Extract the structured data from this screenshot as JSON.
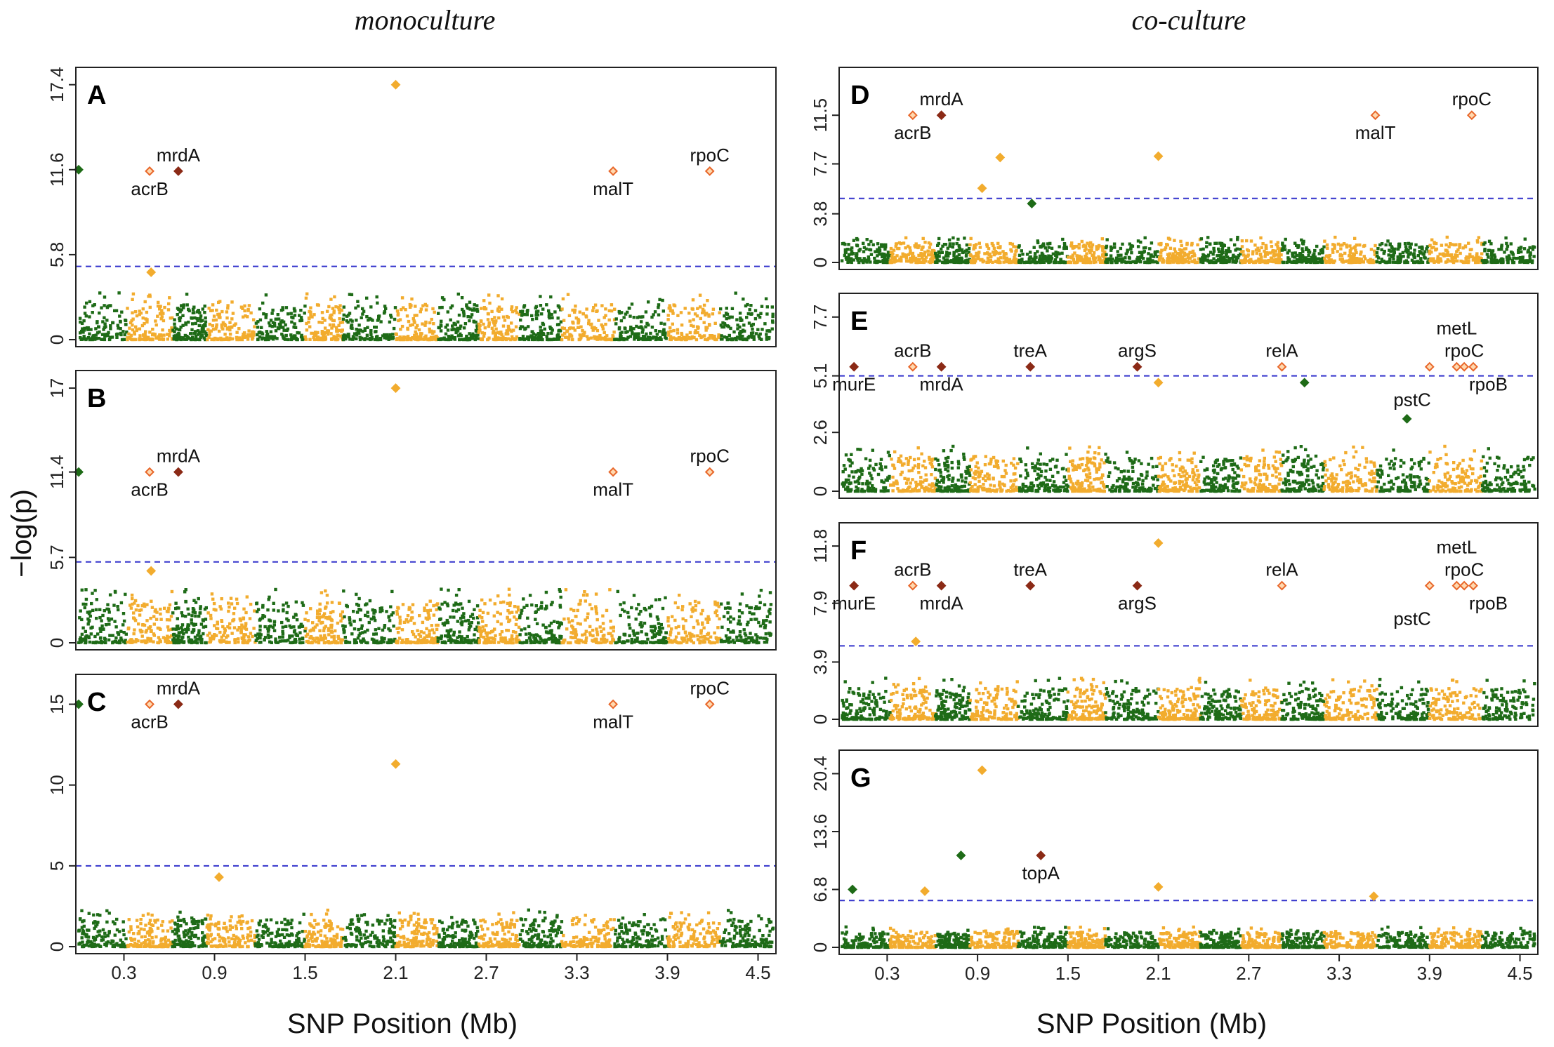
{
  "figure": {
    "left_title": "monoculture",
    "right_title": "co-culture",
    "y_axis_label": "−log(p)",
    "x_axis_label_left": "SNP Position (Mb)",
    "x_axis_label_right": "SNP Position (Mb)"
  },
  "colors": {
    "green": "#1e6b17",
    "orange": "#f2ac2e",
    "sig_orange": "#e8672a",
    "sig_dark": "#8b2a16",
    "threshold": "#3333cc"
  },
  "chart_data": [
    {
      "id": "A",
      "type": "scatter",
      "column": "monoculture",
      "x_ticks": [
        "0.3",
        "0.9",
        "1.5",
        "2.1",
        "2.7",
        "3.3",
        "3.9",
        "4.5"
      ],
      "y_ticks": [
        0,
        5.8,
        11.6,
        17.4
      ],
      "ylim": [
        0,
        18.2
      ],
      "xlim": [
        0,
        4.6
      ],
      "threshold": 5.0,
      "background_max": 3.2,
      "hits": [
        {
          "gene": "acrB",
          "x": 0.47,
          "y": 11.5,
          "color": "orange",
          "label_pos": "below"
        },
        {
          "gene": "mrdA",
          "x": 0.66,
          "y": 11.5,
          "color": "dark",
          "label_pos": "above"
        },
        {
          "gene": "malT",
          "x": 3.54,
          "y": 11.5,
          "color": "orange",
          "label_pos": "below"
        },
        {
          "gene": "rpoC",
          "x": 4.18,
          "y": 11.5,
          "color": "orange",
          "label_pos": "above"
        },
        {
          "gene": "",
          "x": 2.1,
          "y": 17.4,
          "color": "yellow",
          "label_pos": "none"
        },
        {
          "gene": "",
          "x": 0.48,
          "y": 4.6,
          "color": "yellow",
          "label_pos": "none"
        },
        {
          "gene": "",
          "x": 0.0,
          "y": 11.6,
          "color": "green",
          "label_pos": "none"
        }
      ]
    },
    {
      "id": "B",
      "type": "scatter",
      "column": "monoculture",
      "x_ticks": [
        "0.3",
        "0.9",
        "1.5",
        "2.1",
        "2.7",
        "3.3",
        "3.9",
        "4.5"
      ],
      "y_ticks": [
        0,
        5.7,
        11.4,
        17
      ],
      "ylim": [
        0,
        17.8
      ],
      "xlim": [
        0,
        4.6
      ],
      "threshold": 5.4,
      "background_max": 3.6,
      "hits": [
        {
          "gene": "acrB",
          "x": 0.47,
          "y": 11.4,
          "color": "orange",
          "label_pos": "below"
        },
        {
          "gene": "mrdA",
          "x": 0.66,
          "y": 11.4,
          "color": "dark",
          "label_pos": "above"
        },
        {
          "gene": "malT",
          "x": 3.54,
          "y": 11.4,
          "color": "orange",
          "label_pos": "below"
        },
        {
          "gene": "rpoC",
          "x": 4.18,
          "y": 11.4,
          "color": "orange",
          "label_pos": "above"
        },
        {
          "gene": "",
          "x": 2.1,
          "y": 17.0,
          "color": "yellow",
          "label_pos": "none"
        },
        {
          "gene": "",
          "x": 0.48,
          "y": 4.8,
          "color": "yellow",
          "label_pos": "none"
        },
        {
          "gene": "",
          "x": 0.0,
          "y": 11.4,
          "color": "green",
          "label_pos": "none"
        }
      ]
    },
    {
      "id": "C",
      "type": "scatter",
      "column": "monoculture",
      "x_ticks": [
        "0.3",
        "0.9",
        "1.5",
        "2.1",
        "2.7",
        "3.3",
        "3.9",
        "4.5"
      ],
      "y_ticks": [
        0,
        5,
        10,
        15
      ],
      "ylim": [
        0,
        16.5
      ],
      "xlim": [
        0,
        4.6
      ],
      "threshold": 5.0,
      "background_max": 2.3,
      "hits": [
        {
          "gene": "acrB",
          "x": 0.47,
          "y": 15.0,
          "color": "orange",
          "label_pos": "below"
        },
        {
          "gene": "mrdA",
          "x": 0.66,
          "y": 15.0,
          "color": "dark",
          "label_pos": "above"
        },
        {
          "gene": "malT",
          "x": 3.54,
          "y": 15.0,
          "color": "orange",
          "label_pos": "below"
        },
        {
          "gene": "rpoC",
          "x": 4.18,
          "y": 15.0,
          "color": "orange",
          "label_pos": "above"
        },
        {
          "gene": "",
          "x": 2.1,
          "y": 11.3,
          "color": "yellow",
          "label_pos": "none"
        },
        {
          "gene": "",
          "x": 0.93,
          "y": 4.3,
          "color": "yellow",
          "label_pos": "none"
        },
        {
          "gene": "",
          "x": 0.0,
          "y": 15.0,
          "color": "green",
          "label_pos": "none"
        }
      ]
    },
    {
      "id": "D",
      "type": "scatter",
      "column": "co-culture",
      "x_ticks": [
        "0.3",
        "0.9",
        "1.5",
        "2.1",
        "2.7",
        "3.3",
        "3.9",
        "4.5"
      ],
      "y_ticks": [
        0,
        3.8,
        7.7,
        11.5
      ],
      "ylim": [
        0,
        14.8
      ],
      "xlim": [
        0,
        4.6
      ],
      "threshold": 5.0,
      "background_max": 2.0,
      "hits": [
        {
          "gene": "acrB",
          "x": 0.47,
          "y": 11.5,
          "color": "orange",
          "label_pos": "below"
        },
        {
          "gene": "mrdA",
          "x": 0.66,
          "y": 11.5,
          "color": "dark",
          "label_pos": "above"
        },
        {
          "gene": "malT",
          "x": 3.54,
          "y": 11.5,
          "color": "orange",
          "label_pos": "below"
        },
        {
          "gene": "rpoC",
          "x": 4.18,
          "y": 11.5,
          "color": "orange",
          "label_pos": "above"
        },
        {
          "gene": "",
          "x": 0.93,
          "y": 5.8,
          "color": "yellow",
          "label_pos": "none"
        },
        {
          "gene": "",
          "x": 1.05,
          "y": 8.2,
          "color": "yellow",
          "label_pos": "none"
        },
        {
          "gene": "",
          "x": 2.1,
          "y": 8.3,
          "color": "yellow",
          "label_pos": "none"
        },
        {
          "gene": "",
          "x": 1.26,
          "y": 4.6,
          "color": "green",
          "label_pos": "none"
        }
      ]
    },
    {
      "id": "E",
      "type": "scatter",
      "column": "co-culture",
      "x_ticks": [
        "0.3",
        "0.9",
        "1.5",
        "2.1",
        "2.7",
        "3.3",
        "3.9",
        "4.5"
      ],
      "y_ticks": [
        0,
        2.6,
        5.1,
        7.7
      ],
      "ylim": [
        0,
        8.5
      ],
      "xlim": [
        0,
        4.6
      ],
      "threshold": 5.1,
      "background_max": 2.0,
      "hits": [
        {
          "gene": "murE",
          "x": 0.08,
          "y": 5.5,
          "color": "dark",
          "label_pos": "below"
        },
        {
          "gene": "acrB",
          "x": 0.47,
          "y": 5.5,
          "color": "orange",
          "label_pos": "above"
        },
        {
          "gene": "mrdA",
          "x": 0.66,
          "y": 5.5,
          "color": "dark",
          "label_pos": "below"
        },
        {
          "gene": "treA",
          "x": 1.25,
          "y": 5.5,
          "color": "dark",
          "label_pos": "above"
        },
        {
          "gene": "argS",
          "x": 1.96,
          "y": 5.5,
          "color": "dark",
          "label_pos": "above"
        },
        {
          "gene": "relA",
          "x": 2.92,
          "y": 5.5,
          "color": "orange",
          "label_pos": "above"
        },
        {
          "gene": "pstC",
          "x": 3.9,
          "y": 5.5,
          "color": "orange",
          "label_pos": "below-left"
        },
        {
          "gene": "metL",
          "x": 4.08,
          "y": 5.5,
          "color": "orange",
          "label_pos": "above2"
        },
        {
          "gene": "rpoC",
          "x": 4.13,
          "y": 5.5,
          "color": "orange",
          "label_pos": "above"
        },
        {
          "gene": "rpoB",
          "x": 4.19,
          "y": 5.5,
          "color": "orange",
          "label_pos": "below-right"
        },
        {
          "gene": "",
          "x": 2.1,
          "y": 4.8,
          "color": "yellow",
          "label_pos": "none"
        },
        {
          "gene": "",
          "x": 3.07,
          "y": 4.8,
          "color": "green",
          "label_pos": "none"
        },
        {
          "gene": "",
          "x": 3.75,
          "y": 3.2,
          "color": "green",
          "label_pos": "none"
        }
      ]
    },
    {
      "id": "F",
      "type": "scatter",
      "column": "co-culture",
      "x_ticks": [
        "0.3",
        "0.9",
        "1.5",
        "2.1",
        "2.7",
        "3.3",
        "3.9",
        "4.5"
      ],
      "y_ticks": [
        0,
        3.9,
        7.9,
        11.8
      ],
      "ylim": [
        0,
        13.0
      ],
      "xlim": [
        0,
        4.6
      ],
      "threshold": 5.0,
      "background_max": 2.8,
      "hits": [
        {
          "gene": "murE",
          "x": 0.08,
          "y": 9.1,
          "color": "dark",
          "label_pos": "below"
        },
        {
          "gene": "acrB",
          "x": 0.47,
          "y": 9.1,
          "color": "orange",
          "label_pos": "above"
        },
        {
          "gene": "mrdA",
          "x": 0.66,
          "y": 9.1,
          "color": "dark",
          "label_pos": "below"
        },
        {
          "gene": "treA",
          "x": 1.25,
          "y": 9.1,
          "color": "dark",
          "label_pos": "above"
        },
        {
          "gene": "argS",
          "x": 1.96,
          "y": 9.1,
          "color": "dark",
          "label_pos": "below"
        },
        {
          "gene": "relA",
          "x": 2.92,
          "y": 9.1,
          "color": "orange",
          "label_pos": "above"
        },
        {
          "gene": "pstC",
          "x": 3.9,
          "y": 9.1,
          "color": "orange",
          "label_pos": "below-left"
        },
        {
          "gene": "metL",
          "x": 4.08,
          "y": 9.1,
          "color": "orange",
          "label_pos": "above2"
        },
        {
          "gene": "rpoC",
          "x": 4.13,
          "y": 9.1,
          "color": "orange",
          "label_pos": "above"
        },
        {
          "gene": "rpoB",
          "x": 4.19,
          "y": 9.1,
          "color": "orange",
          "label_pos": "below-right"
        },
        {
          "gene": "",
          "x": 2.1,
          "y": 12.0,
          "color": "yellow",
          "label_pos": "none"
        },
        {
          "gene": "",
          "x": 0.49,
          "y": 5.3,
          "color": "yellow",
          "label_pos": "none"
        }
      ]
    },
    {
      "id": "G",
      "type": "scatter",
      "column": "co-culture",
      "x_ticks": [
        "0.3",
        "0.9",
        "1.5",
        "2.1",
        "2.7",
        "3.3",
        "3.9",
        "4.5"
      ],
      "y_ticks": [
        0,
        6.8,
        13.6,
        20.4
      ],
      "ylim": [
        0,
        22.5
      ],
      "xlim": [
        0,
        4.6
      ],
      "threshold": 5.5,
      "background_max": 2.4,
      "hits": [
        {
          "gene": "topA",
          "x": 1.32,
          "y": 10.8,
          "color": "dark",
          "label_pos": "below"
        },
        {
          "gene": "",
          "x": 0.93,
          "y": 20.8,
          "color": "yellow",
          "label_pos": "none"
        },
        {
          "gene": "",
          "x": 0.79,
          "y": 10.8,
          "color": "green",
          "label_pos": "none"
        },
        {
          "gene": "",
          "x": 0.07,
          "y": 6.8,
          "color": "green",
          "label_pos": "none"
        },
        {
          "gene": "",
          "x": 0.55,
          "y": 6.6,
          "color": "yellow",
          "label_pos": "none"
        },
        {
          "gene": "",
          "x": 2.1,
          "y": 7.1,
          "color": "yellow",
          "label_pos": "none"
        },
        {
          "gene": "",
          "x": 3.53,
          "y": 6.0,
          "color": "yellow",
          "label_pos": "none"
        }
      ]
    }
  ]
}
